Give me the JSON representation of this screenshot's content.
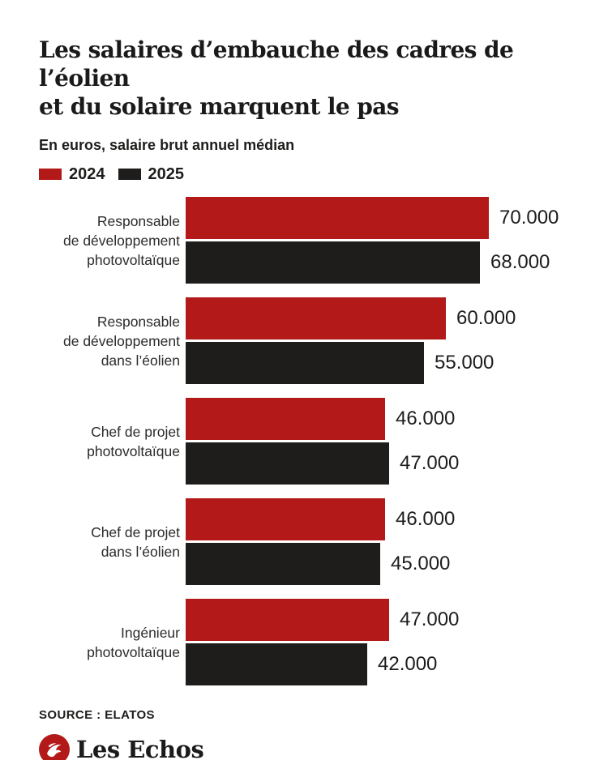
{
  "header": {
    "title_line1": "Les salaires d’embauche des cadres de l’éolien",
    "title_line2": "et du solaire marquent le pas",
    "subtitle": "En euros, salaire brut annuel médian"
  },
  "chart_data": {
    "type": "bar",
    "orientation": "horizontal",
    "title": "Les salaires d’embauche des cadres de l’éolien et du solaire marquent le pas",
    "subtitle": "En euros, salaire brut annuel médian",
    "unit": "euros (salaire brut annuel médian)",
    "xlim": [
      0,
      70000
    ],
    "grid": false,
    "legend_position": "top-left",
    "categories": [
      "Responsable de développement photovoltaïque",
      "Responsable de développement dans l’éolien",
      "Chef de projet photovoltaïque",
      "Chef de projet dans l’éolien",
      "Ingénieur photovoltaïque"
    ],
    "category_label_lines": [
      [
        "Responsable",
        "de développement",
        "photovoltaïque"
      ],
      [
        "Responsable",
        "de développement",
        "dans l’éolien"
      ],
      [
        "Chef de projet",
        "photovoltaïque"
      ],
      [
        "Chef de projet",
        "dans l’éolien"
      ],
      [
        "Ingénieur",
        "photovoltaïque"
      ]
    ],
    "series": [
      {
        "name": "2024",
        "color": "#b31918",
        "values": [
          70000,
          60000,
          46000,
          46000,
          47000
        ],
        "value_labels": [
          "70.000",
          "60.000",
          "46.000",
          "46.000",
          "47.000"
        ]
      },
      {
        "name": "2025",
        "color": "#1f1d1b",
        "values": [
          68000,
          55000,
          47000,
          45000,
          42000
        ],
        "value_labels": [
          "68.000",
          "55.000",
          "47.000",
          "45.000",
          "42.000"
        ]
      }
    ]
  },
  "colors": {
    "accent_red": "#b31918",
    "bar_black": "#1f1d1b",
    "text": "#1a1a1a"
  },
  "footer": {
    "source": "SOURCE : ELATOS",
    "brand": "Les Echos"
  }
}
